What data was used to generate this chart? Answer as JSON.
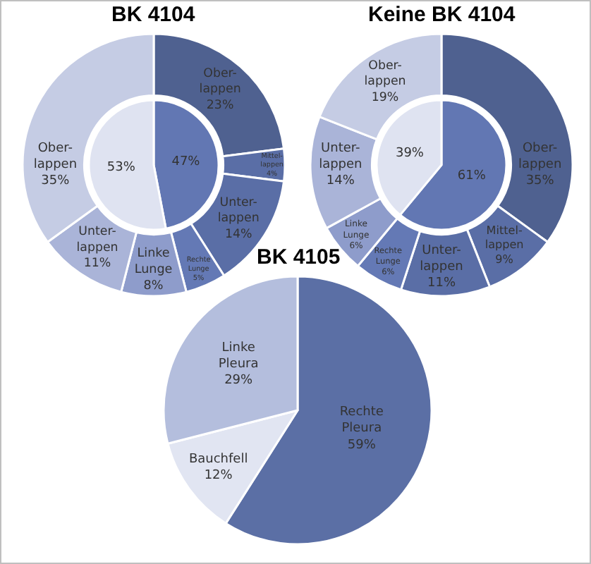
{
  "chart_data": [
    {
      "type": "donut",
      "title": "BK 4104",
      "categories": [
        "Ober-\nlappen",
        "Mittel-\nlappen",
        "Unter-\nlappen",
        "Rechte\nLunge",
        "Linke\nLunge",
        "Unter-\nlappen",
        "Ober-\nlappen"
      ],
      "series": [
        {
          "values": [
            23,
            4,
            14,
            5,
            8,
            11,
            35
          ],
          "value_labels": [
            "23%",
            "4%",
            "14%",
            "5%",
            "8%",
            "11%",
            "35%"
          ],
          "colors": [
            "#4f6190",
            "#5a6ea6",
            "#5a6ea6",
            "#6479b5",
            "#8e9ccb",
            "#aab4d8",
            "#c5cce4"
          ]
        },
        {
          "values": [
            47,
            null,
            null,
            null,
            53,
            null,
            null
          ],
          "value_labels": [
            "47%",
            null,
            null,
            null,
            "53%",
            null,
            null
          ],
          "colors": [
            "#6277b3",
            null,
            null,
            null,
            "#dfe3f1",
            null,
            null
          ]
        }
      ]
    },
    {
      "type": "donut",
      "title": "Keine BK 4104",
      "categories": [
        "Ober-\nlappen",
        "Mittel-\nlappen",
        "Unter-\nlappen",
        "Rechte\nLunge",
        "Linke\nLunge",
        "Unter-\nlappen",
        "Ober-\nlappen"
      ],
      "series": [
        {
          "values": [
            35,
            9,
            11,
            6,
            6,
            14,
            19
          ],
          "value_labels": [
            "35%",
            "9%",
            "11%",
            "6%",
            "6%",
            "14%",
            "19%"
          ],
          "colors": [
            "#4f6190",
            "#5a6ea6",
            "#5a6ea6",
            "#6479b5",
            "#8e9ccb",
            "#aab4d8",
            "#c5cce4"
          ]
        },
        {
          "values": [
            61,
            null,
            null,
            null,
            39,
            null,
            null
          ],
          "value_labels": [
            "61%",
            null,
            null,
            null,
            "39%",
            null,
            null
          ],
          "colors": [
            "#6277b3",
            null,
            null,
            null,
            "#dfe3f1",
            null,
            null
          ]
        }
      ]
    },
    {
      "type": "pie",
      "title": "BK 4105",
      "categories": [
        "Rechte\nPleura",
        "Bauchfell",
        "Linke\nPleura"
      ],
      "values": [
        59,
        12,
        29
      ],
      "value_labels": [
        "59%",
        "12%",
        "29%"
      ],
      "colors": [
        "#5b6fa5",
        "#e1e5f2",
        "#b4bedd"
      ]
    }
  ]
}
